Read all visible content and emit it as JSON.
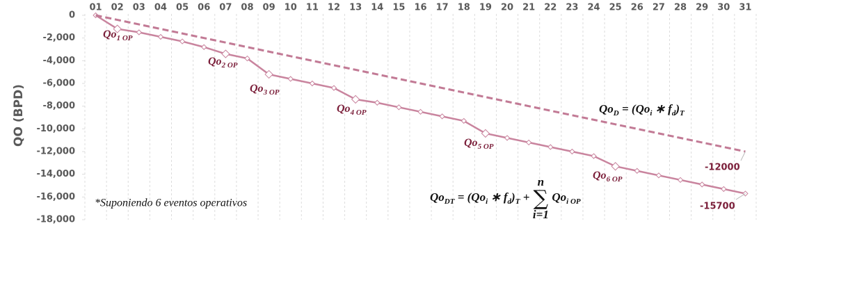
{
  "chart_data": {
    "type": "line",
    "y_label": "QO (BPD)",
    "categories": [
      "01",
      "02",
      "03",
      "04",
      "05",
      "06",
      "07",
      "08",
      "09",
      "10",
      "11",
      "12",
      "13",
      "14",
      "15",
      "16",
      "17",
      "18",
      "19",
      "20",
      "21",
      "22",
      "23",
      "24",
      "25",
      "26",
      "27",
      "28",
      "29",
      "30",
      "31"
    ],
    "series": [
      {
        "name": "QoDT",
        "color": "#c9849e",
        "dash": false,
        "values": [
          0,
          -1200,
          -1500,
          -1900,
          -2300,
          -2800,
          -3400,
          -3800,
          -5200,
          -5600,
          -6000,
          -6400,
          -7400,
          -7700,
          -8100,
          -8500,
          -8900,
          -9300,
          -10400,
          -10800,
          -11200,
          -11600,
          -12000,
          -12400,
          -13300,
          -13700,
          -14100,
          -14500,
          -14900,
          -15300,
          -15700
        ]
      },
      {
        "name": "QoD",
        "color": "#c27a95",
        "dash": true,
        "values": [
          0,
          -400,
          -800,
          -1200,
          -1600,
          -2000,
          -2400,
          -2800,
          -3200,
          -3600,
          -4000,
          -4400,
          -4800,
          -5200,
          -5600,
          -6000,
          -6400,
          -6800,
          -7200,
          -7600,
          -8000,
          -8400,
          -8800,
          -9200,
          -9600,
          -10000,
          -10400,
          -10800,
          -11200,
          -11600,
          -12000
        ]
      }
    ],
    "ylim": [
      0,
      -18000
    ],
    "yticks": [
      0,
      {
        "value": -2000,
        "label": "-2,000"
      },
      {
        "value": -4000,
        "label": "-4,000"
      },
      {
        "value": -6000,
        "label": "-6,000"
      },
      {
        "value": -8000,
        "label": "-8,000"
      },
      {
        "value": -10000,
        "label": "-10,000"
      },
      {
        "value": -12000,
        "label": "-12,000"
      },
      {
        "value": -14000,
        "label": "-14,000"
      },
      {
        "value": -16000,
        "label": "-16,000"
      },
      {
        "value": -18000,
        "label": "-18,000"
      }
    ],
    "xgrid": true,
    "annotations": [
      {
        "text": "Qo",
        "sub": "1 OP"
      },
      {
        "text": "Qo",
        "sub": "2 OP"
      },
      {
        "text": "Qo",
        "sub": "3 OP"
      },
      {
        "text": "Qo",
        "sub": "4 OP"
      },
      {
        "text": "Qo",
        "sub": "5 OP"
      },
      {
        "text": "Qo",
        "sub": "6 OP"
      }
    ],
    "formulas": [
      {
        "parts": [
          {
            "text": "Qo"
          },
          {
            "sub": "D"
          },
          {
            "text": " = (Qo"
          },
          {
            "sub": "i"
          },
          {
            "text": " ∗ f"
          },
          {
            "sub": "d"
          },
          {
            "text": ")"
          },
          {
            "sub": "T"
          }
        ]
      },
      {
        "parts": [
          {
            "text": "Qo"
          },
          {
            "sub": "DT"
          },
          {
            "text": " = (Qo"
          },
          {
            "sub": "i"
          },
          {
            "text": " ∗ f"
          },
          {
            "sub": "d"
          },
          {
            "text": ")"
          },
          {
            "sub": "T"
          },
          {
            "text": " + "
          },
          {
            "sum": "∑",
            "upper": "n",
            "lower": "i=1"
          },
          {
            "text": "Qo"
          },
          {
            "sub": "i OP"
          }
        ]
      }
    ],
    "note": "*Suponiendo 6 eventos operativos"
  }
}
